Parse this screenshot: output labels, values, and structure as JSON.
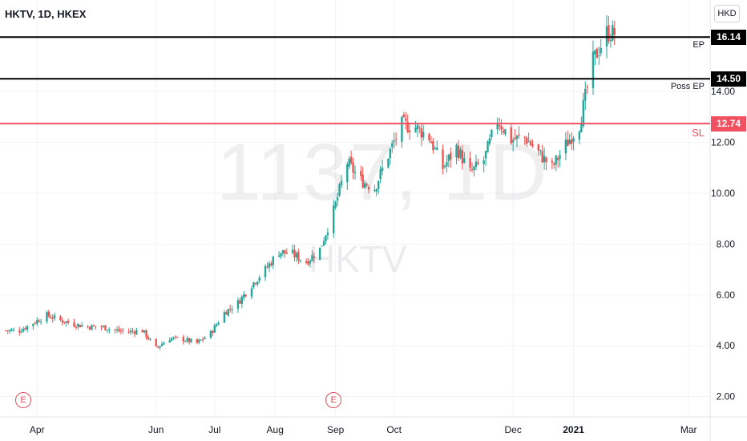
{
  "header": {
    "title": "HKTV, 1D, HKEX",
    "currency": "HKD"
  },
  "watermark": {
    "symbol_interval": "1137, 1D",
    "ticker": "HKTV"
  },
  "colors": {
    "up": "#26a69a",
    "down": "#ef5350",
    "level_line": "#000000",
    "stop_line": "#f05060",
    "grid": "#f0f3fa"
  },
  "levels": [
    {
      "value": 16.14,
      "tag": "16.14",
      "label": "EP",
      "color": "#000000"
    },
    {
      "value": 14.5,
      "tag": "14.50",
      "label": "Poss EP",
      "color": "#000000"
    },
    {
      "value": 12.74,
      "tag": "12.74",
      "label": "SL",
      "color": "#f05060"
    }
  ],
  "events": [
    {
      "label": "E",
      "date": "2020-03-25"
    },
    {
      "label": "E",
      "date": "2020-08-31"
    }
  ],
  "chart_data": {
    "type": "candlestick",
    "x_ticks": [
      "Apr",
      "Jun",
      "Jul",
      "Aug",
      "Sep",
      "Oct",
      "Dec",
      "2021",
      "Mar"
    ],
    "y_ticks": [
      "2.00",
      "4.00",
      "6.00",
      "8.00",
      "10.00",
      "12.00",
      "14.00"
    ],
    "ylim": [
      1.2,
      17.6
    ],
    "grid": true,
    "weekly_close": [
      {
        "date": "2020-03-23",
        "close": 4.6
      },
      {
        "date": "2020-03-30",
        "close": 4.9
      },
      {
        "date": "2020-04-06",
        "close": 5.2
      },
      {
        "date": "2020-04-13",
        "close": 5.0
      },
      {
        "date": "2020-04-20",
        "close": 4.85
      },
      {
        "date": "2020-04-27",
        "close": 4.75
      },
      {
        "date": "2020-05-04",
        "close": 4.75
      },
      {
        "date": "2020-05-11",
        "close": 4.6
      },
      {
        "date": "2020-05-18",
        "close": 4.55
      },
      {
        "date": "2020-05-25",
        "close": 4.6
      },
      {
        "date": "2020-06-01",
        "close": 3.9
      },
      {
        "date": "2020-06-08",
        "close": 4.3
      },
      {
        "date": "2020-06-15",
        "close": 4.25
      },
      {
        "date": "2020-06-22",
        "close": 4.1
      },
      {
        "date": "2020-06-29",
        "close": 4.5
      },
      {
        "date": "2020-07-06",
        "close": 5.3
      },
      {
        "date": "2020-07-13",
        "close": 5.7
      },
      {
        "date": "2020-07-20",
        "close": 6.4
      },
      {
        "date": "2020-07-27",
        "close": 7.0
      },
      {
        "date": "2020-08-03",
        "close": 7.7
      },
      {
        "date": "2020-08-10",
        "close": 7.6
      },
      {
        "date": "2020-08-17",
        "close": 7.3
      },
      {
        "date": "2020-08-24",
        "close": 7.8
      },
      {
        "date": "2020-08-31",
        "close": 9.3
      },
      {
        "date": "2020-09-07",
        "close": 11.2
      },
      {
        "date": "2020-09-14",
        "close": 10.5
      },
      {
        "date": "2020-09-21",
        "close": 10.2
      },
      {
        "date": "2020-09-28",
        "close": 11.5
      },
      {
        "date": "2020-10-05",
        "close": 12.7
      },
      {
        "date": "2020-10-12",
        "close": 12.6
      },
      {
        "date": "2020-10-19",
        "close": 12.2
      },
      {
        "date": "2020-10-26",
        "close": 11.0
      },
      {
        "date": "2020-11-02",
        "close": 11.8
      },
      {
        "date": "2020-11-09",
        "close": 10.8
      },
      {
        "date": "2020-11-16",
        "close": 11.3
      },
      {
        "date": "2020-11-23",
        "close": 12.9
      },
      {
        "date": "2020-11-30",
        "close": 12.1
      },
      {
        "date": "2020-12-07",
        "close": 12.2
      },
      {
        "date": "2020-12-14",
        "close": 11.6
      },
      {
        "date": "2020-12-21",
        "close": 11.0
      },
      {
        "date": "2020-12-28",
        "close": 11.9
      },
      {
        "date": "2021-01-04",
        "close": 12.7
      },
      {
        "date": "2021-01-11",
        "close": 15.2
      },
      {
        "date": "2021-01-18",
        "close": 16.3
      }
    ]
  }
}
